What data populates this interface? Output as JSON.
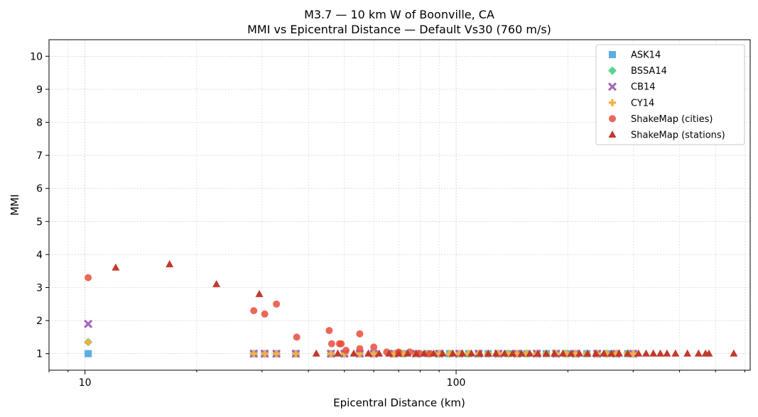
{
  "chart_data": {
    "type": "scatter",
    "title": "M3.7 — 10 km W of Boonville, CA",
    "subtitle": "MMI vs Epicentral Distance — Default Vs30 (760 m/s)",
    "xlabel": "Epicentral Distance (km)",
    "ylabel": "MMI",
    "x_scale": "log",
    "xlim": [
      8,
      620
    ],
    "ylim": [
      0.5,
      10.5
    ],
    "x_ticks": [
      10,
      100
    ],
    "y_ticks": [
      1,
      2,
      3,
      4,
      5,
      6,
      7,
      8,
      9,
      10
    ],
    "grid": true,
    "legend_position": "top-right",
    "series": [
      {
        "name": "ASK14",
        "marker": "square",
        "color": "#5dade2",
        "points": [
          [
            10.2,
            1
          ],
          [
            28.5,
            1
          ],
          [
            30.5,
            1
          ],
          [
            32.8,
            1
          ],
          [
            37,
            1
          ],
          [
            46,
            1
          ],
          [
            50,
            1
          ],
          [
            55,
            1
          ],
          [
            60,
            1
          ],
          [
            68,
            1
          ],
          [
            72,
            1
          ],
          [
            78,
            1
          ],
          [
            84,
            1
          ],
          [
            90,
            1
          ],
          [
            96,
            1
          ],
          [
            102,
            1
          ],
          [
            108,
            1
          ],
          [
            115,
            1
          ],
          [
            122,
            1
          ],
          [
            130,
            1
          ],
          [
            138,
            1
          ],
          [
            146,
            1
          ],
          [
            155,
            1
          ],
          [
            165,
            1
          ],
          [
            175,
            1
          ],
          [
            186,
            1
          ],
          [
            198,
            1
          ],
          [
            210,
            1
          ],
          [
            225,
            1
          ],
          [
            240,
            1
          ],
          [
            255,
            1
          ],
          [
            270,
            1
          ],
          [
            290,
            1
          ],
          [
            300,
            1
          ]
        ]
      },
      {
        "name": "BSSA14",
        "marker": "diamond",
        "color": "#58d68d",
        "points": [
          [
            10.2,
            1.35
          ],
          [
            28.5,
            1
          ],
          [
            30.5,
            1
          ],
          [
            32.8,
            1
          ],
          [
            37,
            1
          ],
          [
            46,
            1
          ],
          [
            50,
            1
          ],
          [
            55,
            1
          ],
          [
            60,
            1
          ],
          [
            68,
            1
          ],
          [
            72,
            1
          ],
          [
            78,
            1
          ],
          [
            84,
            1
          ],
          [
            90,
            1
          ],
          [
            96,
            1
          ],
          [
            102,
            1
          ],
          [
            108,
            1
          ],
          [
            115,
            1
          ],
          [
            122,
            1
          ],
          [
            130,
            1
          ],
          [
            138,
            1
          ],
          [
            146,
            1
          ],
          [
            155,
            1
          ],
          [
            165,
            1
          ],
          [
            175,
            1
          ],
          [
            186,
            1
          ],
          [
            198,
            1
          ],
          [
            210,
            1
          ],
          [
            225,
            1
          ],
          [
            240,
            1
          ],
          [
            255,
            1
          ],
          [
            270,
            1
          ],
          [
            290,
            1
          ],
          [
            300,
            1
          ]
        ]
      },
      {
        "name": "CB14",
        "marker": "x",
        "color": "#a569bd",
        "points": [
          [
            10.2,
            1.9
          ],
          [
            28.5,
            1
          ],
          [
            30.5,
            1
          ],
          [
            32.8,
            1
          ],
          [
            37,
            1
          ],
          [
            46,
            1
          ],
          [
            50,
            1
          ],
          [
            55,
            1
          ],
          [
            60,
            1
          ],
          [
            68,
            1
          ],
          [
            78,
            1
          ],
          [
            90,
            1
          ],
          [
            102,
            1
          ],
          [
            115,
            1
          ],
          [
            130,
            1
          ],
          [
            146,
            1
          ],
          [
            165,
            1
          ],
          [
            186,
            1
          ],
          [
            210,
            1
          ],
          [
            240,
            1
          ],
          [
            270,
            1
          ],
          [
            300,
            1
          ]
        ]
      },
      {
        "name": "CY14",
        "marker": "plus",
        "color": "#f5b041",
        "points": [
          [
            10.2,
            1.35
          ],
          [
            28.5,
            1
          ],
          [
            30.5,
            1
          ],
          [
            32.8,
            1
          ],
          [
            37,
            1
          ],
          [
            46,
            1
          ],
          [
            50,
            1
          ],
          [
            55,
            1
          ],
          [
            60,
            1
          ],
          [
            68,
            1
          ],
          [
            72,
            1
          ],
          [
            78,
            1
          ],
          [
            84,
            1
          ],
          [
            90,
            1
          ],
          [
            96,
            1
          ],
          [
            102,
            1
          ],
          [
            108,
            1
          ],
          [
            115,
            1
          ],
          [
            122,
            1
          ],
          [
            130,
            1
          ],
          [
            138,
            1
          ],
          [
            146,
            1
          ],
          [
            155,
            1
          ],
          [
            165,
            1
          ],
          [
            175,
            1
          ],
          [
            186,
            1
          ],
          [
            198,
            1
          ],
          [
            210,
            1
          ],
          [
            225,
            1
          ],
          [
            240,
            1
          ],
          [
            255,
            1
          ],
          [
            270,
            1
          ],
          [
            290,
            1
          ],
          [
            300,
            1
          ]
        ]
      },
      {
        "name": "ShakeMap (cities)",
        "marker": "circle",
        "color": "#e74c3c",
        "points": [
          [
            10.2,
            3.3
          ],
          [
            28.5,
            2.3
          ],
          [
            30.5,
            2.2
          ],
          [
            32.8,
            2.5
          ],
          [
            37.2,
            1.5
          ],
          [
            45.5,
            1.7
          ],
          [
            46.2,
            1.3
          ],
          [
            48.5,
            1.3
          ],
          [
            49,
            1.3
          ],
          [
            50.5,
            1.1
          ],
          [
            55,
            1.6
          ],
          [
            55,
            1.15
          ],
          [
            60,
            1.2
          ],
          [
            65,
            1.05
          ],
          [
            70,
            1.05
          ],
          [
            75,
            1.05
          ],
          [
            80,
            1.0
          ],
          [
            85,
            1.0
          ]
        ]
      },
      {
        "name": "ShakeMap (stations)",
        "marker": "triangle",
        "color": "#c0392b",
        "points": [
          [
            12.1,
            3.6
          ],
          [
            16.9,
            3.7
          ],
          [
            22.6,
            3.1
          ],
          [
            29.5,
            2.8
          ],
          [
            42,
            1
          ],
          [
            48,
            1
          ],
          [
            53,
            1
          ],
          [
            58,
            1
          ],
          [
            62,
            1
          ],
          [
            66,
            1
          ],
          [
            70,
            1
          ],
          [
            74,
            1
          ],
          [
            78,
            1
          ],
          [
            82,
            1
          ],
          [
            87,
            1
          ],
          [
            92,
            1
          ],
          [
            98,
            1
          ],
          [
            104,
            1
          ],
          [
            110,
            1
          ],
          [
            116,
            1
          ],
          [
            122,
            1
          ],
          [
            128,
            1
          ],
          [
            135,
            1
          ],
          [
            142,
            1
          ],
          [
            150,
            1
          ],
          [
            158,
            1
          ],
          [
            166,
            1
          ],
          [
            175,
            1
          ],
          [
            184,
            1
          ],
          [
            194,
            1
          ],
          [
            204,
            1
          ],
          [
            215,
            1
          ],
          [
            226,
            1
          ],
          [
            238,
            1
          ],
          [
            250,
            1
          ],
          [
            262,
            1
          ],
          [
            275,
            1
          ],
          [
            290,
            1
          ],
          [
            310,
            1
          ],
          [
            325,
            1
          ],
          [
            340,
            1
          ],
          [
            355,
            1
          ],
          [
            370,
            1
          ],
          [
            390,
            1
          ],
          [
            420,
            1
          ],
          [
            450,
            1
          ],
          [
            470,
            1
          ],
          [
            480,
            1
          ],
          [
            560,
            1
          ]
        ]
      }
    ]
  }
}
